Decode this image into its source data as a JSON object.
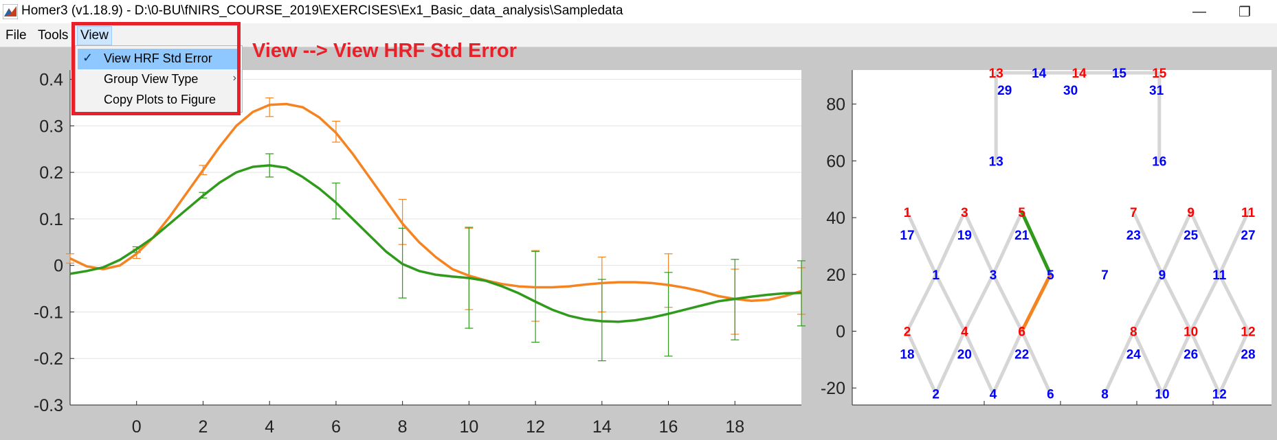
{
  "window": {
    "title": "Homer3 (v1.18.9) - D:\\0-BU\\fNIRS_COURSE_2019\\EXERCISES\\Ex1_Basic_data_analysis\\Sampledata",
    "app_icon": "matlab-icon",
    "controls": {
      "minimize": "minimize-icon",
      "restore": "restore-icon"
    }
  },
  "menubar": {
    "items": [
      {
        "label": "File"
      },
      {
        "label": "Tools"
      },
      {
        "label": "View"
      }
    ]
  },
  "view_menu": {
    "items": [
      {
        "label": "View HRF Std Error",
        "checked": true
      },
      {
        "label": "Group View Type",
        "has_submenu": true
      },
      {
        "label": "Copy Plots to Figure"
      }
    ]
  },
  "annotation": {
    "text": "View --> View HRF Std Error",
    "color": "#e8202a"
  },
  "chart_data": [
    {
      "type": "line",
      "xlim": [
        -2,
        20
      ],
      "ylim": [
        -0.3,
        0.42
      ],
      "xticks": [
        "0",
        "2",
        "4",
        "6",
        "8",
        "10",
        "12",
        "14",
        "16",
        "18"
      ],
      "yticks": [
        "-0.3",
        "-0.2",
        "-0.1",
        "0",
        "0.1",
        "0.2",
        "0.3",
        "0.4"
      ],
      "grid": "horizontal",
      "series": [
        {
          "color": "#f5831f",
          "x": [
            -2,
            -1.5,
            -1,
            -0.5,
            0,
            0.5,
            1,
            1.5,
            2,
            2.5,
            3,
            3.5,
            4,
            4.5,
            5,
            5.5,
            6,
            6.5,
            7,
            7.5,
            8,
            8.5,
            9,
            9.5,
            10,
            10.5,
            11,
            11.5,
            12,
            12.5,
            13,
            13.5,
            14,
            14.5,
            15,
            15.5,
            16,
            16.5,
            17,
            17.5,
            18,
            18.5,
            19,
            19.5,
            20
          ],
          "y": [
            0.015,
            -0.002,
            -0.008,
            0.0,
            0.025,
            0.06,
            0.105,
            0.155,
            0.205,
            0.255,
            0.3,
            0.33,
            0.345,
            0.347,
            0.34,
            0.318,
            0.285,
            0.24,
            0.19,
            0.14,
            0.09,
            0.05,
            0.018,
            -0.008,
            -0.022,
            -0.032,
            -0.04,
            -0.045,
            -0.047,
            -0.047,
            -0.045,
            -0.041,
            -0.038,
            -0.036,
            -0.036,
            -0.038,
            -0.042,
            -0.048,
            -0.056,
            -0.066,
            -0.072,
            -0.076,
            -0.074,
            -0.066,
            -0.055
          ],
          "errorbars": [
            {
              "x": -2,
              "low": 0.005,
              "high": 0.025
            },
            {
              "x": 0,
              "low": 0.015,
              "high": 0.035
            },
            {
              "x": 2,
              "low": 0.195,
              "high": 0.215
            },
            {
              "x": 4,
              "low": 0.32,
              "high": 0.36
            },
            {
              "x": 6,
              "low": 0.265,
              "high": 0.31
            },
            {
              "x": 8,
              "low": 0.045,
              "high": 0.142
            },
            {
              "x": 10,
              "low": -0.095,
              "high": 0.08
            },
            {
              "x": 12,
              "low": -0.12,
              "high": 0.032
            },
            {
              "x": 14,
              "low": -0.1,
              "high": 0.018
            },
            {
              "x": 16,
              "low": -0.09,
              "high": 0.025
            },
            {
              "x": 18,
              "low": -0.148,
              "high": -0.008
            },
            {
              "x": 20,
              "low": -0.105,
              "high": -0.005
            }
          ]
        },
        {
          "color": "#2f9a1b",
          "x": [
            -2,
            -1.5,
            -1,
            -0.5,
            0,
            0.5,
            1,
            1.5,
            2,
            2.5,
            3,
            3.5,
            4,
            4.5,
            5,
            5.5,
            6,
            6.5,
            7,
            7.5,
            8,
            8.5,
            9,
            9.5,
            10,
            10.5,
            11,
            11.5,
            12,
            12.5,
            13,
            13.5,
            14,
            14.5,
            15,
            15.5,
            16,
            16.5,
            17,
            17.5,
            18,
            18.5,
            19,
            19.5,
            20
          ],
          "y": [
            -0.018,
            -0.012,
            -0.004,
            0.012,
            0.035,
            0.06,
            0.09,
            0.12,
            0.15,
            0.178,
            0.2,
            0.212,
            0.215,
            0.21,
            0.19,
            0.165,
            0.135,
            0.1,
            0.065,
            0.03,
            0.003,
            -0.012,
            -0.02,
            -0.024,
            -0.027,
            -0.033,
            -0.045,
            -0.06,
            -0.078,
            -0.095,
            -0.108,
            -0.116,
            -0.12,
            -0.121,
            -0.118,
            -0.112,
            -0.104,
            -0.095,
            -0.086,
            -0.077,
            -0.072,
            -0.067,
            -0.063,
            -0.06,
            -0.059
          ],
          "errorbars": [
            {
              "x": 0,
              "low": 0.028,
              "high": 0.04
            },
            {
              "x": 2,
              "low": 0.145,
              "high": 0.157
            },
            {
              "x": 4,
              "low": 0.19,
              "high": 0.24
            },
            {
              "x": 6,
              "low": 0.1,
              "high": 0.177
            },
            {
              "x": 8,
              "low": -0.07,
              "high": 0.08
            },
            {
              "x": 10,
              "low": -0.135,
              "high": 0.082
            },
            {
              "x": 12,
              "low": -0.165,
              "high": 0.03
            },
            {
              "x": 14,
              "low": -0.205,
              "high": -0.03
            },
            {
              "x": 16,
              "low": -0.195,
              "high": -0.015
            },
            {
              "x": 18,
              "low": -0.16,
              "high": 0.013
            },
            {
              "x": 20,
              "low": -0.13,
              "high": 0.01
            }
          ]
        }
      ]
    },
    {
      "type": "scatter",
      "ylim": [
        -26,
        92
      ],
      "yticks": [
        "-20",
        "0",
        "20",
        "40",
        "60",
        "80"
      ],
      "source_color": "#ff0000",
      "detector_color": "#0000ff",
      "channel_color": "#d6d6d6",
      "sources": [
        {
          "label": "1",
          "x": -46,
          "y": 42
        },
        {
          "label": "3",
          "x": -26,
          "y": 42
        },
        {
          "label": "5",
          "x": -6,
          "y": 42
        },
        {
          "label": "7",
          "x": 33,
          "y": 42
        },
        {
          "label": "9",
          "x": 53,
          "y": 42
        },
        {
          "label": "11",
          "x": 73,
          "y": 42
        },
        {
          "label": "2",
          "x": -46,
          "y": 0
        },
        {
          "label": "4",
          "x": -26,
          "y": 0
        },
        {
          "label": "6",
          "x": -6,
          "y": 0
        },
        {
          "label": "8",
          "x": 33,
          "y": 0
        },
        {
          "label": "10",
          "x": 53,
          "y": 0
        },
        {
          "label": "12",
          "x": 73,
          "y": 0
        },
        {
          "label": "13",
          "x": -15,
          "y": 91
        },
        {
          "label": "14",
          "x": 14,
          "y": 91
        },
        {
          "label": "15",
          "x": 42,
          "y": 91
        }
      ],
      "detectors": [
        {
          "label": "17",
          "x": -46,
          "y": 34
        },
        {
          "label": "19",
          "x": -26,
          "y": 34
        },
        {
          "label": "21",
          "x": -6,
          "y": 34
        },
        {
          "label": "23",
          "x": 33,
          "y": 34
        },
        {
          "label": "25",
          "x": 53,
          "y": 34
        },
        {
          "label": "27",
          "x": 73,
          "y": 34
        },
        {
          "label": "1",
          "x": -36,
          "y": 20
        },
        {
          "label": "3",
          "x": -16,
          "y": 20
        },
        {
          "label": "5",
          "x": 4,
          "y": 20
        },
        {
          "label": "7",
          "x": 23,
          "y": 20
        },
        {
          "label": "9",
          "x": 43,
          "y": 20
        },
        {
          "label": "11",
          "x": 63,
          "y": 20
        },
        {
          "label": "18",
          "x": -46,
          "y": -8
        },
        {
          "label": "20",
          "x": -26,
          "y": -8
        },
        {
          "label": "22",
          "x": -6,
          "y": -8
        },
        {
          "label": "24",
          "x": 33,
          "y": -8
        },
        {
          "label": "26",
          "x": 53,
          "y": -8
        },
        {
          "label": "28",
          "x": 73,
          "y": -8
        },
        {
          "label": "2",
          "x": -36,
          "y": -22
        },
        {
          "label": "4",
          "x": -16,
          "y": -22
        },
        {
          "label": "6",
          "x": 4,
          "y": -22
        },
        {
          "label": "8",
          "x": 23,
          "y": -22
        },
        {
          "label": "10",
          "x": 43,
          "y": -22
        },
        {
          "label": "12",
          "x": 63,
          "y": -22
        },
        {
          "label": "29",
          "x": -12,
          "y": 85
        },
        {
          "label": "30",
          "x": 11,
          "y": 85
        },
        {
          "label": "31",
          "x": 41,
          "y": 85
        },
        {
          "label": "14",
          "x": 0,
          "y": 91
        },
        {
          "label": "15",
          "x": 28,
          "y": 91
        },
        {
          "label": "13",
          "x": -15,
          "y": 60
        },
        {
          "label": "16",
          "x": 42,
          "y": 60
        }
      ],
      "channels": [
        {
          "x1": -46,
          "y1": 42,
          "x2": -36,
          "y2": 20
        },
        {
          "x1": -26,
          "y1": 42,
          "x2": -36,
          "y2": 20
        },
        {
          "x1": -26,
          "y1": 42,
          "x2": -16,
          "y2": 20
        },
        {
          "x1": -6,
          "y1": 42,
          "x2": -16,
          "y2": 20
        },
        {
          "x1": -6,
          "y1": 42,
          "x2": 4,
          "y2": 20,
          "color": "#2f9a1b"
        },
        {
          "x1": -46,
          "y1": 0,
          "x2": -36,
          "y2": 20
        },
        {
          "x1": -26,
          "y1": 0,
          "x2": -36,
          "y2": 20
        },
        {
          "x1": -26,
          "y1": 0,
          "x2": -16,
          "y2": 20
        },
        {
          "x1": -6,
          "y1": 0,
          "x2": -16,
          "y2": 20
        },
        {
          "x1": -6,
          "y1": 0,
          "x2": 4,
          "y2": 20,
          "color": "#f5831f"
        },
        {
          "x1": -46,
          "y1": 0,
          "x2": -36,
          "y2": -22
        },
        {
          "x1": -26,
          "y1": 0,
          "x2": -36,
          "y2": -22
        },
        {
          "x1": -26,
          "y1": 0,
          "x2": -16,
          "y2": -22
        },
        {
          "x1": -6,
          "y1": 0,
          "x2": -16,
          "y2": -22
        },
        {
          "x1": -6,
          "y1": 0,
          "x2": 4,
          "y2": -22
        },
        {
          "x1": 33,
          "y1": 42,
          "x2": 43,
          "y2": 20
        },
        {
          "x1": 53,
          "y1": 42,
          "x2": 43,
          "y2": 20
        },
        {
          "x1": 53,
          "y1": 42,
          "x2": 63,
          "y2": 20
        },
        {
          "x1": 73,
          "y1": 42,
          "x2": 63,
          "y2": 20
        },
        {
          "x1": 33,
          "y1": 0,
          "x2": 43,
          "y2": 20
        },
        {
          "x1": 53,
          "y1": 0,
          "x2": 43,
          "y2": 20
        },
        {
          "x1": 53,
          "y1": 0,
          "x2": 63,
          "y2": 20
        },
        {
          "x1": 73,
          "y1": 0,
          "x2": 63,
          "y2": 20
        },
        {
          "x1": 33,
          "y1": 0,
          "x2": 23,
          "y2": -22
        },
        {
          "x1": 33,
          "y1": 0,
          "x2": 43,
          "y2": -22
        },
        {
          "x1": 53,
          "y1": 0,
          "x2": 43,
          "y2": -22
        },
        {
          "x1": 53,
          "y1": 0,
          "x2": 63,
          "y2": -22
        },
        {
          "x1": 73,
          "y1": 0,
          "x2": 63,
          "y2": -22
        },
        {
          "x1": -15,
          "y1": 91,
          "x2": 42,
          "y2": 91
        },
        {
          "x1": -15,
          "y1": 91,
          "x2": -15,
          "y2": 60
        },
        {
          "x1": 42,
          "y1": 91,
          "x2": 42,
          "y2": 60
        }
      ]
    }
  ]
}
